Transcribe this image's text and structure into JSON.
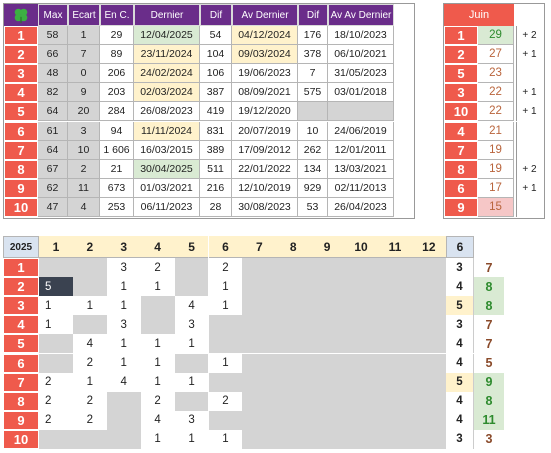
{
  "top_table": {
    "headers": [
      "Max",
      "Ecart",
      "En C.",
      "Dernier",
      "Dif",
      "Av Dernier",
      "Dif",
      "Av Av Dernier"
    ],
    "rows": [
      {
        "n": "1",
        "max": "58",
        "ecart": "1",
        "enc": "29",
        "dernier": "12/04/2025",
        "dif": "54",
        "av": "04/12/2024",
        "dif2": "176",
        "avav": "18/10/2023",
        "dcol": "green",
        "acol": "yellow"
      },
      {
        "n": "2",
        "max": "66",
        "ecart": "7",
        "enc": "89",
        "dernier": "23/11/2024",
        "dif": "104",
        "av": "09/03/2024",
        "dif2": "378",
        "avav": "06/10/2021",
        "dcol": "yellow",
        "acol": "yellow"
      },
      {
        "n": "3",
        "max": "48",
        "ecart": "0",
        "enc": "206",
        "dernier": "24/02/2024",
        "dif": "106",
        "av": "19/06/2023",
        "dif2": "7",
        "avav": "31/05/2023",
        "dcol": "yellow",
        "acol": ""
      },
      {
        "n": "4",
        "max": "82",
        "ecart": "9",
        "enc": "203",
        "dernier": "02/03/2024",
        "dif": "387",
        "av": "08/09/2021",
        "dif2": "575",
        "avav": "03/01/2018",
        "dcol": "yellow",
        "acol": ""
      },
      {
        "n": "5",
        "max": "64",
        "ecart": "20",
        "enc": "284",
        "dernier": "26/08/2023",
        "dif": "419",
        "av": "19/12/2020",
        "dif2": "",
        "avav": "",
        "dcol": "",
        "acol": ""
      },
      {
        "n": "6",
        "max": "61",
        "ecart": "3",
        "enc": "94",
        "dernier": "11/11/2024",
        "dif": "831",
        "av": "20/07/2019",
        "dif2": "10",
        "avav": "24/06/2019",
        "dcol": "yellow",
        "acol": ""
      },
      {
        "n": "7",
        "max": "64",
        "ecart": "10",
        "enc": "1 606",
        "dernier": "16/03/2015",
        "dif": "389",
        "av": "17/09/2012",
        "dif2": "262",
        "avav": "12/01/2011",
        "dcol": "",
        "acol": ""
      },
      {
        "n": "8",
        "max": "67",
        "ecart": "2",
        "enc": "21",
        "dernier": "30/04/2025",
        "dif": "511",
        "av": "22/01/2022",
        "dif2": "134",
        "avav": "13/03/2021",
        "dcol": "green",
        "acol": ""
      },
      {
        "n": "9",
        "max": "62",
        "ecart": "11",
        "enc": "673",
        "dernier": "01/03/2021",
        "dif": "216",
        "av": "12/10/2019",
        "dif2": "929",
        "avav": "02/11/2013",
        "dcol": "",
        "acol": ""
      },
      {
        "n": "10",
        "max": "47",
        "ecart": "4",
        "enc": "253",
        "dernier": "06/11/2023",
        "dif": "28",
        "av": "30/08/2023",
        "dif2": "53",
        "avav": "26/04/2023",
        "dcol": "",
        "acol": ""
      }
    ]
  },
  "juin": {
    "title": "Juin",
    "rows": [
      {
        "n": "1",
        "v": "29",
        "extra": "+ 2",
        "style": "green"
      },
      {
        "n": "2",
        "v": "27",
        "extra": "+ 1",
        "style": "brown"
      },
      {
        "n": "5",
        "v": "23",
        "extra": "",
        "style": "brown"
      },
      {
        "n": "3",
        "v": "22",
        "extra": "+ 1",
        "style": "brown"
      },
      {
        "n": "10",
        "v": "22",
        "extra": "+ 1",
        "style": "brown"
      },
      {
        "n": "4",
        "v": "21",
        "extra": "",
        "style": "brown"
      },
      {
        "n": "7",
        "v": "19",
        "extra": "",
        "style": "brown"
      },
      {
        "n": "8",
        "v": "19",
        "extra": "+ 2",
        "style": "brown"
      },
      {
        "n": "6",
        "v": "17",
        "extra": "+ 1",
        "style": "brown"
      },
      {
        "n": "9",
        "v": "15",
        "extra": "",
        "style": "pink"
      }
    ]
  },
  "bottom": {
    "year": "2025",
    "months": [
      "1",
      "2",
      "3",
      "4",
      "5",
      "6",
      "7",
      "8",
      "9",
      "10",
      "11",
      "12"
    ],
    "extra_header": "6",
    "rows": [
      {
        "n": "1",
        "cells": [
          "",
          "",
          "3",
          "2",
          "",
          "2",
          "",
          "",
          "",
          "",
          "",
          ""
        ],
        "a": "3",
        "b": "7",
        "astyle": "",
        "bstyle": "brown"
      },
      {
        "n": "2",
        "cells": [
          "5",
          "",
          "1",
          "1",
          "",
          "1",
          "",
          "",
          "",
          "",
          "",
          ""
        ],
        "a": "4",
        "b": "8",
        "astyle": "",
        "bstyle": "green"
      },
      {
        "n": "3",
        "cells": [
          "1",
          "1",
          "1",
          "",
          "4",
          "1",
          "",
          "",
          "",
          "",
          "",
          ""
        ],
        "a": "5",
        "b": "8",
        "astyle": "ypale",
        "bstyle": "green"
      },
      {
        "n": "4",
        "cells": [
          "1",
          "",
          "3",
          "",
          "3",
          "",
          "",
          "",
          "",
          "",
          "",
          ""
        ],
        "a": "3",
        "b": "7",
        "astyle": "",
        "bstyle": "brown"
      },
      {
        "n": "5",
        "cells": [
          "",
          "4",
          "1",
          "1",
          "1",
          "",
          "",
          "",
          "",
          "",
          "",
          ""
        ],
        "a": "4",
        "b": "7",
        "astyle": "",
        "bstyle": "brown"
      },
      {
        "n": "6",
        "cells": [
          "",
          "2",
          "1",
          "1",
          "",
          "1",
          "",
          "",
          "",
          "",
          "",
          ""
        ],
        "a": "4",
        "b": "5",
        "astyle": "",
        "bstyle": "brown"
      },
      {
        "n": "7",
        "cells": [
          "2",
          "1",
          "4",
          "1",
          "1",
          "",
          "",
          "",
          "",
          "",
          "",
          ""
        ],
        "a": "5",
        "b": "9",
        "astyle": "ypale",
        "bstyle": "green"
      },
      {
        "n": "8",
        "cells": [
          "2",
          "2",
          "",
          "2",
          "",
          "2",
          "",
          "",
          "",
          "",
          "",
          ""
        ],
        "a": "4",
        "b": "8",
        "astyle": "",
        "bstyle": "green"
      },
      {
        "n": "9",
        "cells": [
          "2",
          "2",
          "",
          "4",
          "3",
          "",
          "",
          "",
          "",
          "",
          "",
          ""
        ],
        "a": "4",
        "b": "11",
        "astyle": "",
        "bstyle": "green"
      },
      {
        "n": "10",
        "cells": [
          "",
          "",
          "",
          "1",
          "1",
          "1",
          "",
          "",
          "",
          "",
          "",
          ""
        ],
        "a": "3",
        "b": "3",
        "astyle": "",
        "bstyle": "brown"
      }
    ]
  },
  "colors": {
    "red": "#ef5a4c",
    "purple": "#6a2d8a",
    "green_bg": "#d9ead3",
    "yellow_bg": "#fff2cc",
    "gray": "#d4d4d4",
    "dark_cell": "#3a4250"
  }
}
